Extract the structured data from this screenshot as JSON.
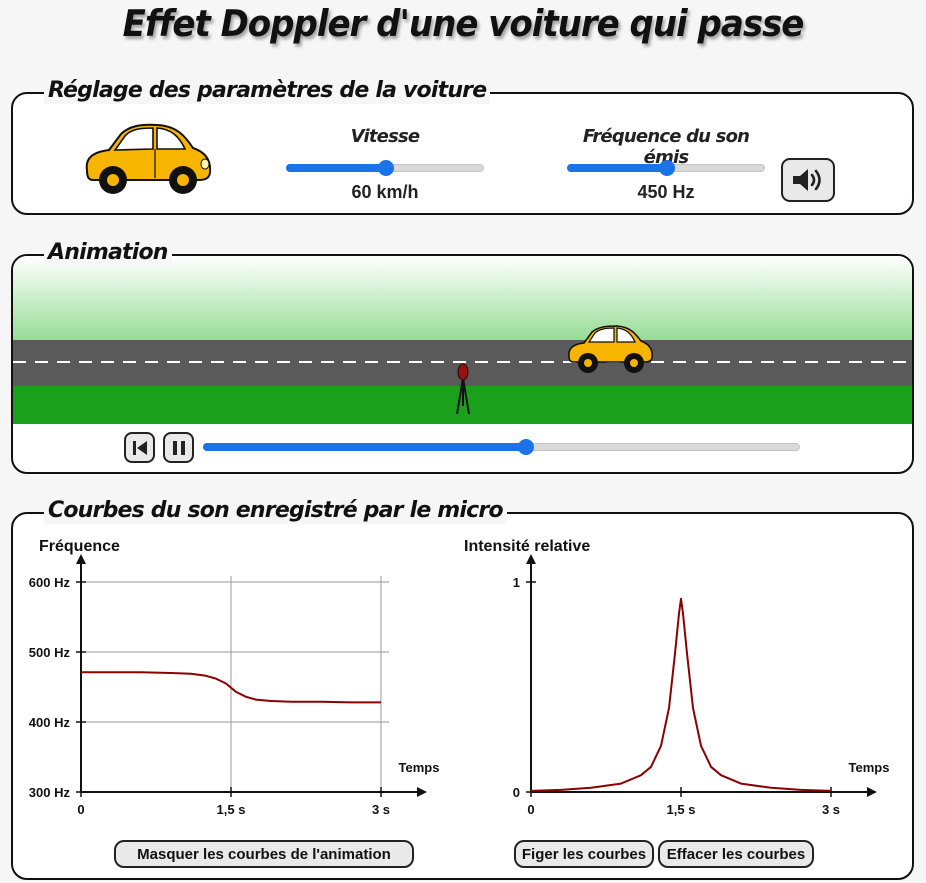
{
  "page": {
    "title": "Effet Doppler d'une voiture qui passe"
  },
  "settings": {
    "legend": "Réglage des paramètres de la voiture",
    "speed": {
      "label": "Vitesse",
      "value_text": "60 km/h",
      "value": 60,
      "fraction": 0.5
    },
    "frequency": {
      "label": "Fréquence du son émis",
      "value_text": "450 Hz",
      "value": 450,
      "fraction": 0.5
    },
    "sound_button_icon": "speaker-icon"
  },
  "animation": {
    "legend": "Animation",
    "progress_fraction": 0.54,
    "rewind_icon": "skip-back-icon",
    "pause_icon": "pause-icon"
  },
  "curves": {
    "legend": "Courbes du son enregistré par le micro",
    "hide_button": "Masquer les courbes de l'animation",
    "freeze_button": "Figer les courbes",
    "clear_button": "Effacer les courbes"
  },
  "colors": {
    "accent": "#1a73e8",
    "curve": "#8b0000",
    "road": "#5a5a5a",
    "grass": "#1aa01a",
    "car": "#f5a800"
  },
  "chart_data": [
    {
      "type": "line",
      "ylabel": "Fréquence",
      "xlabel": "Temps",
      "x_ticks": [
        "0",
        "1,5 s",
        "3 s"
      ],
      "y_ticks": [
        "300 Hz",
        "400 Hz",
        "500 Hz",
        "600 Hz"
      ],
      "xlim": [
        0,
        3
      ],
      "ylim": [
        300,
        600
      ],
      "grid": true,
      "series": [
        {
          "x": [
            0,
            0.3,
            0.6,
            0.9,
            1.1,
            1.25,
            1.35,
            1.45,
            1.5,
            1.55,
            1.65,
            1.75,
            1.9,
            2.1,
            2.4,
            2.7,
            3.0
          ],
          "y": [
            471,
            471,
            471,
            470,
            469,
            466,
            462,
            455,
            449,
            443,
            436,
            432,
            430,
            429,
            429,
            428,
            428
          ]
        }
      ]
    },
    {
      "type": "line",
      "ylabel": "Intensité relative",
      "xlabel": "Temps",
      "x_ticks": [
        "0",
        "1,5 s",
        "3 s"
      ],
      "y_ticks": [
        "0",
        "1"
      ],
      "xlim": [
        0,
        3
      ],
      "ylim": [
        0,
        1
      ],
      "grid": false,
      "series": [
        {
          "x": [
            0,
            0.3,
            0.6,
            0.9,
            1.1,
            1.2,
            1.3,
            1.38,
            1.44,
            1.48,
            1.5,
            1.52,
            1.56,
            1.62,
            1.7,
            1.8,
            1.9,
            2.1,
            2.4,
            2.7,
            3.0
          ],
          "y": [
            0.005,
            0.01,
            0.02,
            0.04,
            0.08,
            0.12,
            0.22,
            0.4,
            0.66,
            0.85,
            0.92,
            0.85,
            0.66,
            0.4,
            0.22,
            0.12,
            0.08,
            0.04,
            0.02,
            0.01,
            0.005
          ]
        }
      ]
    }
  ]
}
